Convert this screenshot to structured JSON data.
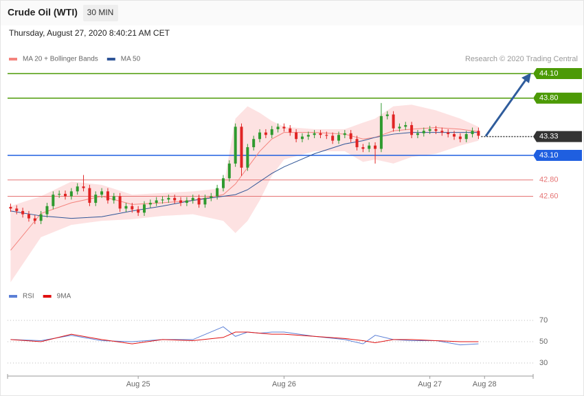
{
  "header": {
    "title": "Crude Oil (WTI)",
    "interval": "30 MIN",
    "timestamp": "Thursday, August 27, 2020 8:40:21 AM CET"
  },
  "chart_data": [
    {
      "type": "candlestick",
      "source": "Research © 2020 Trading Central",
      "xlim": [
        -1,
        172
      ],
      "ylim": [
        41.5,
        44.5
      ],
      "up_color": "#2e9a2e",
      "down_color": "#e02424",
      "x": [
        0,
        2,
        4,
        6,
        8,
        10,
        12,
        14,
        16,
        18,
        20,
        22,
        24,
        26,
        28,
        30,
        32,
        34,
        36,
        38,
        40,
        42,
        44,
        46,
        48,
        50,
        52,
        54,
        56,
        58,
        60,
        62,
        64,
        66,
        68,
        70,
        72,
        74,
        76,
        78,
        80,
        82,
        84,
        86,
        88,
        90,
        92,
        94,
        96,
        98,
        100,
        102,
        104,
        106,
        108,
        110,
        112,
        114,
        116,
        118,
        120,
        122,
        124,
        126,
        128,
        130,
        132,
        134,
        136,
        138,
        140,
        142,
        144,
        146,
        148,
        150,
        152,
        154
      ],
      "open": [
        42.47,
        42.45,
        42.42,
        42.38,
        42.33,
        42.3,
        42.38,
        42.48,
        42.62,
        42.63,
        42.6,
        42.66,
        42.72,
        42.7,
        42.52,
        42.62,
        42.66,
        42.55,
        42.6,
        42.45,
        42.48,
        42.44,
        42.4,
        42.5,
        42.52,
        42.55,
        42.56,
        42.58,
        42.55,
        42.52,
        42.55,
        42.58,
        42.5,
        42.58,
        42.6,
        42.7,
        42.82,
        43.0,
        43.45,
        42.95,
        43.2,
        43.3,
        43.38,
        43.35,
        43.42,
        43.45,
        43.43,
        43.38,
        43.3,
        43.33,
        43.35,
        43.37,
        43.35,
        43.34,
        43.28,
        43.35,
        43.37,
        43.3,
        43.2,
        43.18,
        43.22,
        43.18,
        43.58,
        43.6,
        43.43,
        43.45,
        43.47,
        43.35,
        43.37,
        43.4,
        43.42,
        43.4,
        43.38,
        43.36,
        43.33,
        43.3,
        43.36,
        43.4
      ],
      "high": [
        42.51,
        42.49,
        42.46,
        42.42,
        42.37,
        42.42,
        42.52,
        42.66,
        42.67,
        42.67,
        42.7,
        42.76,
        42.86,
        42.74,
        42.66,
        42.7,
        42.7,
        42.64,
        42.64,
        42.52,
        42.52,
        42.48,
        42.54,
        42.56,
        42.59,
        42.6,
        42.62,
        42.62,
        42.59,
        42.59,
        42.62,
        42.62,
        42.62,
        42.64,
        42.74,
        42.86,
        43.04,
        43.49,
        43.49,
        43.24,
        43.34,
        43.42,
        43.42,
        43.46,
        43.49,
        43.49,
        43.47,
        43.42,
        43.37,
        43.39,
        43.41,
        43.41,
        43.39,
        43.38,
        43.39,
        43.41,
        43.41,
        43.34,
        43.24,
        43.26,
        43.26,
        43.74,
        43.64,
        43.64,
        43.49,
        43.51,
        43.51,
        43.41,
        43.44,
        43.46,
        43.46,
        43.44,
        43.42,
        43.4,
        43.37,
        43.4,
        43.44,
        43.44
      ],
      "low": [
        42.41,
        42.38,
        42.34,
        42.29,
        42.26,
        42.26,
        42.34,
        42.44,
        42.58,
        42.56,
        42.56,
        42.62,
        42.66,
        42.48,
        42.48,
        42.58,
        42.51,
        42.51,
        42.41,
        42.41,
        42.4,
        42.36,
        42.36,
        42.46,
        42.48,
        42.51,
        42.52,
        42.51,
        42.48,
        42.48,
        42.51,
        42.46,
        42.46,
        42.54,
        42.56,
        42.66,
        42.78,
        42.96,
        42.85,
        42.91,
        43.16,
        43.26,
        43.31,
        43.31,
        43.38,
        43.39,
        43.34,
        43.26,
        43.26,
        43.29,
        43.31,
        43.31,
        43.3,
        43.24,
        43.24,
        43.31,
        43.26,
        43.16,
        43.14,
        43.14,
        43.0,
        43.14,
        43.54,
        43.39,
        43.39,
        43.41,
        43.31,
        43.31,
        43.33,
        43.36,
        43.36,
        43.34,
        43.32,
        43.29,
        43.26,
        43.26,
        43.32,
        43.3
      ],
      "close": [
        42.45,
        42.42,
        42.38,
        42.33,
        42.3,
        42.38,
        42.48,
        42.62,
        42.63,
        42.6,
        42.66,
        42.72,
        42.7,
        42.52,
        42.62,
        42.66,
        42.55,
        42.6,
        42.45,
        42.48,
        42.44,
        42.4,
        42.5,
        42.52,
        42.55,
        42.56,
        42.58,
        42.55,
        42.52,
        42.55,
        42.58,
        42.5,
        42.58,
        42.6,
        42.7,
        42.82,
        43.0,
        43.45,
        42.95,
        43.2,
        43.3,
        43.38,
        43.35,
        43.42,
        43.45,
        43.43,
        43.38,
        43.3,
        43.33,
        43.35,
        43.37,
        43.35,
        43.34,
        43.28,
        43.35,
        43.37,
        43.3,
        43.2,
        43.18,
        43.22,
        43.18,
        43.58,
        43.6,
        43.43,
        43.45,
        43.47,
        43.35,
        43.37,
        43.4,
        43.42,
        43.4,
        43.38,
        43.36,
        43.33,
        43.3,
        43.36,
        43.4,
        43.34
      ],
      "bollinger": {
        "color": "#fde2e2",
        "x": [
          0,
          10,
          20,
          30,
          40,
          50,
          60,
          70,
          74,
          78,
          82,
          86,
          90,
          100,
          110,
          116,
          120,
          126,
          132,
          140,
          148,
          154
        ],
        "upper": [
          42.48,
          42.6,
          42.78,
          42.74,
          42.62,
          42.64,
          42.66,
          42.7,
          43.55,
          43.7,
          43.62,
          43.52,
          43.45,
          43.42,
          43.42,
          43.5,
          43.55,
          43.7,
          43.72,
          43.65,
          43.55,
          43.45
        ],
        "lower": [
          41.55,
          42.1,
          42.25,
          42.3,
          42.32,
          42.36,
          42.38,
          42.3,
          42.15,
          42.3,
          42.55,
          42.85,
          43.05,
          43.15,
          43.15,
          43.02,
          43.05,
          43.0,
          43.08,
          43.12,
          43.22,
          43.28
        ]
      },
      "series": [
        {
          "name": "MA 20 + Bollinger Bands",
          "color": "#f4837d",
          "x": [
            0,
            10,
            20,
            30,
            40,
            50,
            60,
            70,
            74,
            78,
            82,
            86,
            90,
            100,
            110,
            116,
            120,
            126,
            132,
            140,
            148,
            154
          ],
          "values": [
            41.94,
            42.39,
            42.52,
            42.6,
            42.5,
            42.52,
            42.55,
            42.62,
            42.75,
            42.95,
            43.15,
            43.3,
            43.38,
            43.38,
            43.36,
            43.3,
            43.32,
            43.4,
            43.42,
            43.44,
            43.42,
            43.39
          ]
        },
        {
          "name": "MA 50",
          "color": "#2f5597",
          "x": [
            0,
            10,
            20,
            30,
            40,
            50,
            60,
            70,
            74,
            78,
            82,
            86,
            90,
            100,
            110,
            116,
            120,
            126,
            132,
            140,
            148,
            154
          ],
          "values": [
            42.42,
            42.36,
            42.33,
            42.35,
            42.42,
            42.48,
            42.55,
            42.6,
            42.62,
            42.68,
            42.78,
            42.88,
            42.96,
            43.12,
            43.24,
            43.28,
            43.32,
            43.36,
            43.38,
            43.38,
            43.38,
            43.38
          ]
        }
      ],
      "levels": [
        {
          "value": 44.1,
          "label": "44.10",
          "color": "#4c9a06",
          "style": "solid",
          "box": true
        },
        {
          "value": 43.8,
          "label": "43.80",
          "color": "#4c9a06",
          "style": "solid",
          "box": true
        },
        {
          "value": 43.33,
          "label": "43.33",
          "color": "#333333",
          "style": "dotted",
          "box": true
        },
        {
          "value": 43.1,
          "label": "43.10",
          "color": "#1f5fe0",
          "style": "solid",
          "box": true
        },
        {
          "value": 42.8,
          "label": "42.80",
          "color": "#e57373",
          "style": "solid",
          "box": false
        },
        {
          "value": 42.6,
          "label": "42.60",
          "color": "#e57373",
          "style": "solid",
          "box": false
        }
      ]
    },
    {
      "type": "line",
      "xlim": [
        -1,
        172
      ],
      "ylim": [
        25,
        80
      ],
      "yticks": [
        70,
        50,
        30
      ],
      "grid": true,
      "xticks": [
        {
          "value": 42,
          "label": "Aug 25"
        },
        {
          "value": 90,
          "label": "Aug 26"
        },
        {
          "value": 138,
          "label": "Aug 27"
        },
        {
          "value": 156,
          "label": "Aug 28"
        }
      ],
      "series": [
        {
          "name": "RSI",
          "color": "#5b7fd6",
          "x": [
            0,
            10,
            20,
            30,
            40,
            50,
            60,
            70,
            74,
            78,
            82,
            86,
            90,
            100,
            110,
            116,
            120,
            126,
            132,
            140,
            148,
            154
          ],
          "values": [
            52,
            51,
            56,
            51,
            50,
            52,
            52,
            64,
            55,
            59,
            58,
            59,
            59,
            55,
            52,
            48,
            56,
            52,
            51,
            51,
            47,
            48
          ]
        },
        {
          "name": "9MA",
          "color": "#e01010",
          "x": [
            0,
            10,
            20,
            30,
            40,
            50,
            60,
            70,
            74,
            78,
            82,
            86,
            90,
            100,
            110,
            116,
            120,
            126,
            132,
            140,
            148,
            154
          ],
          "values": [
            52,
            50,
            57,
            52,
            48,
            52,
            51,
            54,
            59,
            59,
            58,
            57,
            57,
            55,
            53,
            51,
            49,
            52,
            52,
            51,
            50,
            50
          ]
        }
      ]
    }
  ]
}
